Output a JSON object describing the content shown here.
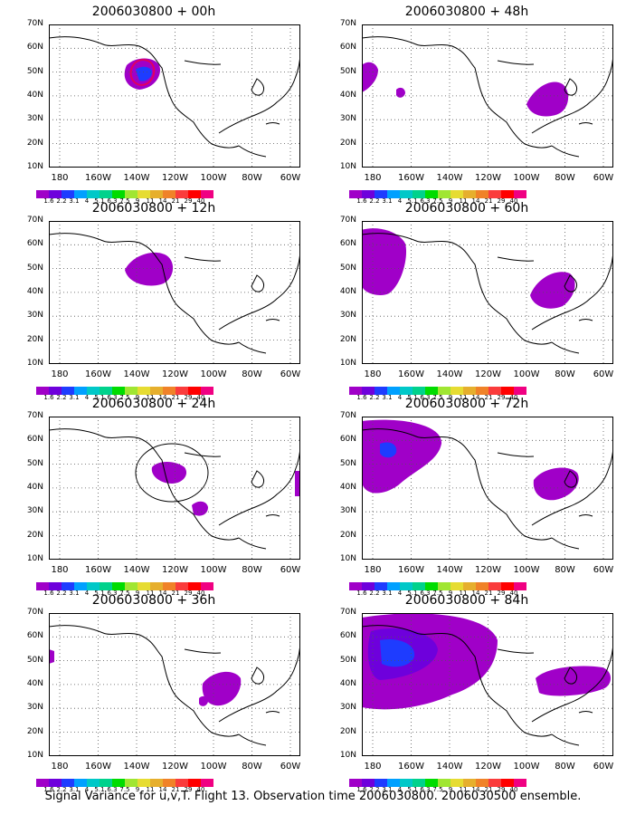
{
  "panels": [
    {
      "title": "2006030800 + 00h",
      "col": 0,
      "row": 0
    },
    {
      "title": "2006030800 + 48h",
      "col": 1,
      "row": 0
    },
    {
      "title": "2006030800 + 12h",
      "col": 0,
      "row": 1
    },
    {
      "title": "2006030800 + 60h",
      "col": 1,
      "row": 1
    },
    {
      "title": "2006030800 + 24h",
      "col": 0,
      "row": 2
    },
    {
      "title": "2006030800 + 72h",
      "col": 1,
      "row": 2
    },
    {
      "title": "2006030800 + 36h",
      "col": 0,
      "row": 3
    },
    {
      "title": "2006030800 + 84h",
      "col": 1,
      "row": 3
    }
  ],
  "axes": {
    "y_ticks": [
      "70N",
      "60N",
      "50N",
      "40N",
      "30N",
      "20N",
      "10N"
    ],
    "x_ticks": [
      "180",
      "160W",
      "140W",
      "120W",
      "100W",
      "80W",
      "60W"
    ]
  },
  "colorbar": {
    "labels": [
      "1.6",
      "2.2",
      "3.1",
      "4",
      "5.1",
      "6.3",
      "7.5",
      "9",
      "11",
      "14",
      "21",
      "29",
      "40"
    ],
    "colors": [
      "#a000c8",
      "#6e00dc",
      "#1e3cff",
      "#00a0ff",
      "#00c8c8",
      "#00d28c",
      "#00dc00",
      "#a0e632",
      "#e6dc32",
      "#e6af2d",
      "#f08228",
      "#fa3c3c",
      "#ff0000",
      "#f00082"
    ]
  },
  "footer": "Signal Variance for u,v,T. Flight 13. Observation time 2006030800. 2006030500 ensemble."
}
